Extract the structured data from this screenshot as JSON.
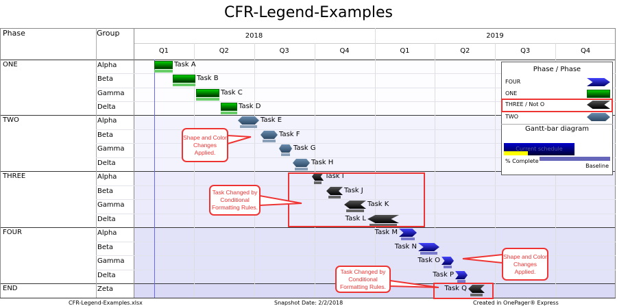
{
  "title": "CFR-Legend-Examples",
  "headers": {
    "phase": "Phase",
    "group": "Group"
  },
  "years": [
    "2018",
    "2019"
  ],
  "quarters": [
    "Q1",
    "Q2",
    "Q3",
    "Q4",
    "Q1",
    "Q2",
    "Q3",
    "Q4"
  ],
  "phases": [
    "ONE",
    "TWO",
    "THREE",
    "FOUR",
    "END"
  ],
  "groups": [
    "Alpha",
    "Beta",
    "Gamma",
    "Delta",
    "Alpha",
    "Beta",
    "Gamma",
    "Delta",
    "Alpha",
    "Beta",
    "Gamma",
    "Delta",
    "Alpha",
    "Beta",
    "Gamma",
    "Delta",
    "Zeta"
  ],
  "tasks": [
    "Task A",
    "Task B",
    "Task C",
    "Task D",
    "Task E",
    "Task F",
    "Task G",
    "Task H",
    "Task I",
    "Task J",
    "Task K",
    "Task L",
    "Task M",
    "Task N",
    "Task O",
    "Task P",
    "Task Q"
  ],
  "callouts": {
    "shape1": "Shape and Color Changes Applied.",
    "cond1": "Task Changed by Conditional Formatting Rules.",
    "shape2": "Shape and Color Changes Applied.",
    "cond2": "Task Changed by Conditional Formatting Rules."
  },
  "legend": {
    "title": "Phase / Phase",
    "items": [
      "FOUR",
      "ONE",
      "THREE / Not O",
      "TWO"
    ],
    "gantt_title": "Gantt-bar diagram",
    "current": "Current schedule",
    "complete": "% Complete",
    "baseline": "Baseline"
  },
  "footer": {
    "file": "CFR-Legend-Examples.xlsx",
    "snapshot": "Snapshot Date: 2/2/2018",
    "created": "Created in OnePager® Express"
  },
  "colors": {
    "accent_red": "#ee3333",
    "one": "#00aa00",
    "two": "#4a6a8a",
    "three": "#111111",
    "four": "#2222cc"
  }
}
